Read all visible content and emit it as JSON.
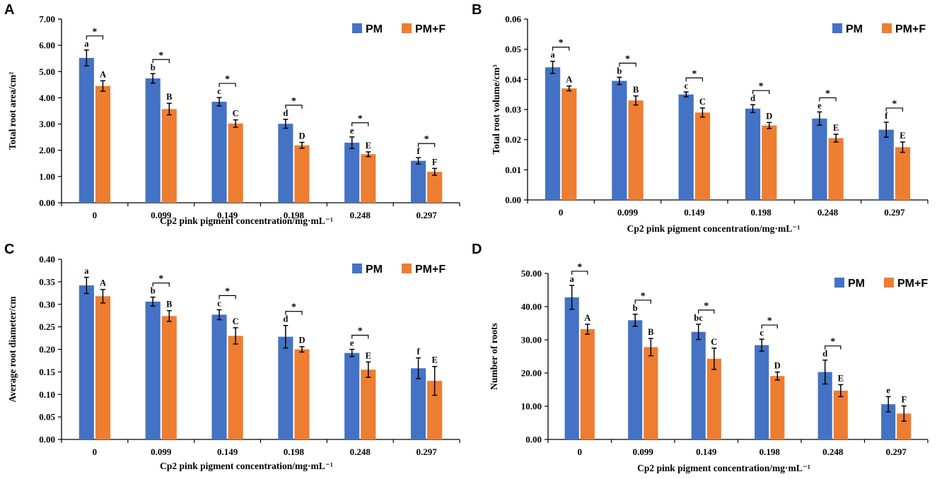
{
  "colors": {
    "pm": "#4472C4",
    "pmf": "#ED7D31",
    "axis": "#000000",
    "error": "#000000"
  },
  "legend": {
    "series_names": [
      "PM",
      "PM+F"
    ],
    "placement": "top-right"
  },
  "chart_data": [
    {
      "panel": "A",
      "type": "bar",
      "ylabel": "Total root area/cm²",
      "xlabel": "Cp2 pink pigment concentration/mg·mL⁻¹",
      "categories": [
        "0",
        "0.099",
        "0.149",
        "0.198",
        "0.248",
        "0.297"
      ],
      "ylim": [
        0,
        7
      ],
      "yticks": [
        "0.00",
        "1.00",
        "2.00",
        "3.00",
        "4.00",
        "5.00",
        "6.00",
        "7.00"
      ],
      "series": [
        {
          "name": "PM",
          "values": [
            5.52,
            4.74,
            3.85,
            3.01,
            2.29,
            1.6
          ],
          "errors": [
            0.3,
            0.18,
            0.16,
            0.17,
            0.22,
            0.12
          ],
          "letters": [
            "a",
            "b",
            "c",
            "d",
            "e",
            "f"
          ]
        },
        {
          "name": "PM+F",
          "values": [
            4.45,
            3.57,
            3.02,
            2.19,
            1.85,
            1.18
          ],
          "errors": [
            0.2,
            0.22,
            0.14,
            0.11,
            0.09,
            0.13
          ],
          "letters": [
            "A",
            "B",
            "C",
            "D",
            "E",
            "F"
          ]
        }
      ],
      "significance": [
        "*",
        "*",
        "*",
        "*",
        "*",
        "*"
      ]
    },
    {
      "panel": "B",
      "type": "bar",
      "ylabel": "Total root volume/cm³",
      "xlabel": "Cp2 pink pigment concentration/mg·mL⁻¹",
      "categories": [
        "0",
        "0.099",
        "0.149",
        "0.198",
        "0.248",
        "0.297"
      ],
      "ylim": [
        0,
        0.06
      ],
      "yticks": [
        "0.00",
        "0.01",
        "0.02",
        "0.03",
        "0.04",
        "0.05",
        "0.06"
      ],
      "series": [
        {
          "name": "PM",
          "values": [
            0.044,
            0.0395,
            0.035,
            0.0303,
            0.027,
            0.0233
          ],
          "errors": [
            0.002,
            0.0012,
            0.0008,
            0.0013,
            0.0022,
            0.0025
          ],
          "letters": [
            "a",
            "b",
            "c",
            "d",
            "e",
            "f"
          ]
        },
        {
          "name": "PM+F",
          "values": [
            0.037,
            0.033,
            0.029,
            0.0247,
            0.0205,
            0.0175
          ],
          "errors": [
            0.0008,
            0.0015,
            0.0015,
            0.001,
            0.0013,
            0.0017
          ],
          "letters": [
            "A",
            "B",
            "C",
            "D",
            "E",
            "E"
          ]
        }
      ],
      "significance": [
        "*",
        "*",
        "*",
        "*",
        "*",
        "*"
      ]
    },
    {
      "panel": "C",
      "type": "bar",
      "ylabel": "Average root diameter/cm",
      "xlabel": "Cp2 pink pigment concentration/mg·mL⁻¹",
      "categories": [
        "0",
        "0.099",
        "0.149",
        "0.198",
        "0.248",
        "0.297"
      ],
      "ylim": [
        0,
        0.4
      ],
      "yticks": [
        "0.00",
        "0.05",
        "0.10",
        "0.15",
        "0.20",
        "0.25",
        "0.30",
        "0.35",
        "0.40"
      ],
      "series": [
        {
          "name": "PM",
          "values": [
            0.342,
            0.306,
            0.277,
            0.228,
            0.192,
            0.158
          ],
          "errors": [
            0.018,
            0.01,
            0.011,
            0.025,
            0.008,
            0.023
          ],
          "letters": [
            "a",
            "b",
            "c",
            "d",
            "e",
            "f"
          ]
        },
        {
          "name": "PM+F",
          "values": [
            0.318,
            0.274,
            0.23,
            0.2,
            0.155,
            0.13
          ],
          "errors": [
            0.015,
            0.012,
            0.018,
            0.006,
            0.017,
            0.032
          ],
          "letters": [
            "A",
            "B",
            "C",
            "D",
            "E",
            "E"
          ]
        }
      ],
      "significance": [
        "",
        "*",
        "*",
        "*",
        "*",
        ""
      ]
    },
    {
      "panel": "D",
      "type": "bar",
      "ylabel": "Number of roots",
      "xlabel": "Cp2 pink pigment concentration/mg·mL⁻¹",
      "categories": [
        "0",
        "0.099",
        "0.149",
        "0.198",
        "0.248",
        "0.297"
      ],
      "ylim": [
        0,
        50
      ],
      "yticks": [
        "0.00",
        "10.00",
        "20.00",
        "30.00",
        "40.00",
        "50.00"
      ],
      "series": [
        {
          "name": "PM",
          "values": [
            42.8,
            35.9,
            32.4,
            28.4,
            20.3,
            10.6
          ],
          "errors": [
            3.6,
            1.8,
            2.3,
            1.8,
            3.6,
            2.3
          ],
          "letters": [
            "a",
            "b",
            "bc",
            "c",
            "d",
            "e"
          ]
        },
        {
          "name": "PM+F",
          "values": [
            33.2,
            27.8,
            24.3,
            19.1,
            14.7,
            7.8
          ],
          "errors": [
            1.5,
            2.6,
            3.2,
            1.2,
            1.8,
            2.3
          ],
          "letters": [
            "A",
            "B",
            "C",
            "D",
            "E",
            "F"
          ]
        }
      ],
      "significance": [
        "*",
        "*",
        "*",
        "*",
        "*",
        ""
      ]
    }
  ]
}
